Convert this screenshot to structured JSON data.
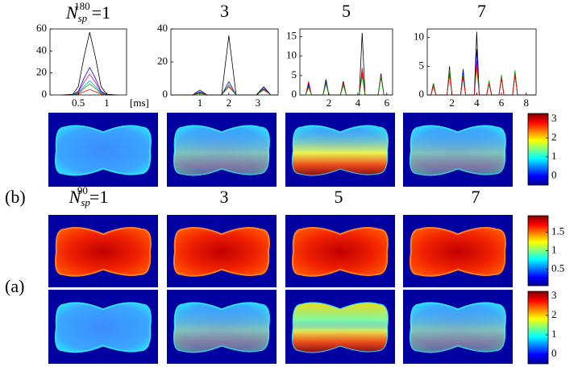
{
  "chart_data": [
    {
      "type": "line",
      "title_symbol": "N",
      "title_sub": "sp",
      "title_sup": "180",
      "title": "=1",
      "x": [
        0.2,
        0.4,
        0.5,
        0.6,
        0.7,
        0.8,
        0.9,
        1.0,
        1.2
      ],
      "xlim": [
        0,
        1.35
      ],
      "xticks": [
        0.5,
        1
      ],
      "x_label": "[ms]",
      "ylim": [
        0,
        60
      ],
      "yticks": [
        0,
        20,
        40,
        60
      ],
      "series": [
        {
          "color": "#000000",
          "values": [
            0,
            0.6,
            7.7,
            34.6,
            57,
            34.6,
            7.7,
            0.6,
            0
          ]
        },
        {
          "color": "#0000ff",
          "values": [
            0,
            0.3,
            3.4,
            15.2,
            25,
            15.2,
            3.4,
            0.3,
            0
          ]
        },
        {
          "color": "#bf00bf",
          "values": [
            0,
            0.2,
            2.6,
            11.5,
            19,
            11.5,
            2.6,
            0.2,
            0
          ]
        },
        {
          "color": "#00bfbf",
          "values": [
            0,
            0.1,
            1.8,
            7.9,
            13,
            7.9,
            1.8,
            0.1,
            0
          ]
        },
        {
          "color": "#00a000",
          "values": [
            0,
            0.1,
            1.4,
            6.1,
            10,
            6.1,
            1.4,
            0.1,
            0
          ]
        },
        {
          "color": "#ff0000",
          "values": [
            0,
            0.1,
            0.7,
            3,
            5,
            3,
            0.7,
            0.1,
            0
          ]
        }
      ]
    },
    {
      "type": "line",
      "title": "3",
      "x": [
        0,
        0.75,
        1,
        1.25,
        1.75,
        2,
        2.25,
        2.95,
        3.2,
        3.45,
        3.7
      ],
      "xlim": [
        0,
        3.7
      ],
      "xticks": [
        1,
        2,
        3
      ],
      "ylim": [
        0,
        40
      ],
      "yticks": [
        0,
        20,
        40
      ],
      "series": [
        {
          "color": "#000000",
          "values": [
            0,
            0,
            3,
            0,
            0,
            36,
            0,
            0,
            5,
            0,
            0
          ]
        },
        {
          "color": "#0000ff",
          "values": [
            0,
            0,
            2,
            0,
            0,
            8,
            0,
            0,
            4,
            0,
            0
          ]
        },
        {
          "color": "#ff0000",
          "values": [
            0,
            0,
            1.5,
            0,
            0,
            5,
            0,
            0,
            3,
            0,
            0
          ]
        },
        {
          "color": "#00a000",
          "values": [
            0,
            0,
            1,
            0,
            0,
            6,
            0,
            0,
            3.5,
            0,
            0
          ]
        }
      ]
    },
    {
      "type": "line",
      "title": "5",
      "x": [
        0,
        0.4,
        0.6,
        0.8,
        1.6,
        1.8,
        2.0,
        2.8,
        3.0,
        3.2,
        4.1,
        4.3,
        4.5,
        5.4,
        5.6,
        5.8,
        6.4
      ],
      "xlim": [
        0,
        6.4
      ],
      "xticks": [
        2,
        4,
        6
      ],
      "ylim": [
        0,
        17
      ],
      "yticks": [
        0,
        5,
        10,
        15
      ],
      "series": [
        {
          "color": "#000000",
          "values": [
            0,
            0,
            3,
            0,
            0,
            4,
            0,
            0,
            3.5,
            0,
            0,
            16,
            0,
            0,
            5.5,
            0,
            0
          ]
        },
        {
          "color": "#0000ff",
          "values": [
            0,
            0,
            2.5,
            0,
            0,
            3.5,
            0,
            0,
            3,
            0,
            0,
            6,
            0,
            0,
            5,
            0,
            0
          ]
        },
        {
          "color": "#ff0000",
          "values": [
            0,
            0,
            3.5,
            0,
            0,
            3,
            0,
            0,
            3,
            0,
            0,
            7,
            0,
            0,
            5,
            0,
            0
          ]
        },
        {
          "color": "#00a000",
          "values": [
            0,
            0,
            2,
            0,
            0,
            3,
            0,
            0,
            2.5,
            0,
            0,
            5,
            0,
            0,
            4.5,
            0,
            0
          ]
        }
      ]
    },
    {
      "type": "line",
      "title": "7",
      "x": [
        0,
        0.3,
        0.5,
        0.7,
        1.6,
        1.8,
        2.0,
        2.7,
        2.9,
        3.1,
        3.8,
        4.0,
        4.2,
        4.8,
        5.0,
        5.2,
        5.8,
        6.0,
        6.2,
        6.9,
        7.1,
        7.3,
        8.8
      ],
      "xlim": [
        0,
        8.8
      ],
      "xticks": [
        2,
        4,
        6,
        8
      ],
      "ylim": [
        0,
        11.5
      ],
      "yticks": [
        0,
        5,
        10
      ],
      "series": [
        {
          "color": "#000000",
          "values": [
            0,
            0,
            2,
            0,
            0,
            5,
            0,
            0,
            4.5,
            0,
            0,
            11,
            0,
            0,
            2,
            0,
            0,
            3,
            0,
            0,
            4,
            0,
            0
          ]
        },
        {
          "color": "#0000ff",
          "values": [
            0,
            0,
            1.5,
            0,
            0,
            4,
            0,
            0,
            4,
            0,
            0,
            8,
            0,
            0,
            2,
            0,
            0,
            3,
            0,
            0,
            3.5,
            0,
            0
          ]
        },
        {
          "color": "#00a000",
          "values": [
            0,
            0,
            1.8,
            0,
            0,
            4.5,
            0,
            0,
            3.5,
            0,
            0,
            5,
            0,
            0,
            2.5,
            0,
            0,
            3.5,
            0,
            0,
            4.3,
            0,
            0
          ]
        },
        {
          "color": "#ff0000",
          "values": [
            0,
            0,
            1.5,
            0,
            0,
            3.5,
            0,
            0,
            3,
            0,
            0,
            6,
            0,
            0,
            2,
            0,
            0,
            3,
            0,
            0,
            3.5,
            0,
            0
          ]
        }
      ]
    }
  ],
  "row_title": {
    "symbol": "N",
    "sub": "sp",
    "sup": "90",
    "labels": [
      "=1",
      "3",
      "5",
      "7"
    ]
  },
  "panel_labels": [
    "(b)",
    "(a)"
  ],
  "colorbars": [
    {
      "ylim": [
        -0.5,
        3.3
      ],
      "yticks": [
        0,
        1,
        2,
        3
      ]
    },
    {
      "ylim": [
        0.05,
        1.95
      ],
      "yticks": [
        0.5,
        1,
        1.5
      ]
    },
    {
      "ylim": [
        -0.5,
        3.25
      ],
      "yticks": [
        0,
        1,
        2,
        3
      ]
    }
  ]
}
